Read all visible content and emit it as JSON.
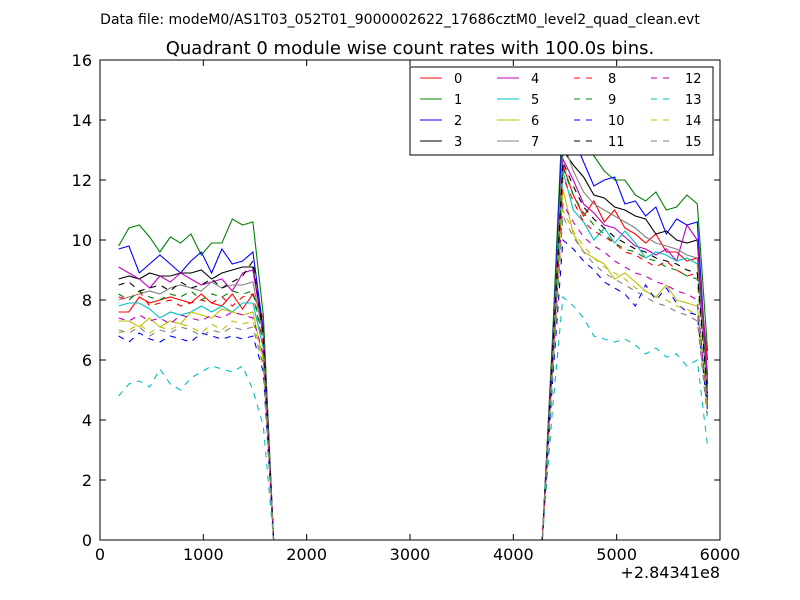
{
  "chart_data": {
    "type": "line",
    "suptitle": "Data file: modeM0/AS1T03_052T01_9000002622_17686cztM0_level2_quad_clean.evt",
    "title": "Quadrant 0 module wise count rates with 100.0s bins.",
    "xlabel": "",
    "ylabel": "",
    "offset_label": "+2.84341e8",
    "xlim": [
      0,
      6000
    ],
    "ylim": [
      0,
      16
    ],
    "xticks": [
      0,
      1000,
      2000,
      3000,
      4000,
      5000,
      6000
    ],
    "yticks": [
      0,
      2,
      4,
      6,
      8,
      10,
      12,
      14,
      16
    ],
    "grid": false,
    "legend_position": "top-right",
    "legend_columns": 4,
    "x": [
      180,
      280,
      380,
      480,
      580,
      680,
      780,
      880,
      980,
      1080,
      1180,
      1280,
      1380,
      1480,
      1580,
      1680,
      1780,
      1880,
      1980,
      2080,
      2180,
      2280,
      2380,
      2480,
      2580,
      2680,
      2780,
      2880,
      2980,
      3080,
      3180,
      3280,
      3380,
      3480,
      3580,
      3680,
      3780,
      3880,
      3980,
      4080,
      4180,
      4280,
      4380,
      4480,
      4580,
      4680,
      4780,
      4880,
      4980,
      5080,
      5180,
      5280,
      5380,
      5480,
      5580,
      5680,
      5780,
      5880
    ],
    "series": [
      {
        "name": "0",
        "color": "#ff0000",
        "dash": "solid",
        "values": [
          7.6,
          7.6,
          8.1,
          7.9,
          8.0,
          8.1,
          8.0,
          7.9,
          8.2,
          7.9,
          7.8,
          8.2,
          7.7,
          8.2,
          7.4,
          0,
          0,
          0,
          0,
          0,
          0,
          0,
          0,
          0,
          0,
          0,
          0,
          0,
          0,
          0,
          0,
          0,
          0,
          0,
          0,
          0,
          0,
          0,
          0,
          0,
          0,
          0,
          6.2,
          12.5,
          11.5,
          10.8,
          11.3,
          10.6,
          11.0,
          10.4,
          10.2,
          9.9,
          10.2,
          9.6,
          9.6,
          9.3,
          9.4,
          6.0
        ]
      },
      {
        "name": "1",
        "color": "#008000",
        "dash": "solid",
        "values": [
          9.8,
          10.4,
          10.5,
          10.1,
          9.6,
          10.1,
          9.9,
          10.2,
          9.5,
          9.9,
          9.9,
          10.7,
          10.5,
          10.6,
          7.5,
          0,
          0,
          0,
          0,
          0,
          0,
          0,
          0,
          0,
          0,
          0,
          0,
          0,
          0,
          0,
          0,
          0,
          0,
          0,
          0,
          0,
          0,
          0,
          0,
          0,
          0,
          0,
          6.8,
          14.5,
          14.0,
          13.6,
          12.8,
          12.3,
          12.0,
          12.0,
          11.5,
          11.3,
          11.6,
          11.0,
          11.1,
          11.5,
          11.2,
          6.3
        ]
      },
      {
        "name": "2",
        "color": "#0000ff",
        "dash": "solid",
        "values": [
          9.7,
          9.8,
          8.9,
          9.2,
          9.5,
          9.2,
          8.9,
          9.3,
          9.6,
          8.9,
          9.7,
          9.2,
          9.3,
          9.6,
          7.0,
          0,
          0,
          0,
          0,
          0,
          0,
          0,
          0,
          0,
          0,
          0,
          0,
          0,
          0,
          0,
          0,
          0,
          0,
          0,
          0,
          0,
          0,
          0,
          0,
          0,
          0,
          0,
          6.5,
          14.0,
          13.4,
          12.6,
          11.8,
          12.0,
          12.1,
          11.2,
          11.3,
          10.8,
          11.1,
          10.2,
          10.7,
          10.5,
          10.6,
          5.2
        ]
      },
      {
        "name": "3",
        "color": "#000000",
        "dash": "solid",
        "values": [
          8.7,
          8.8,
          8.7,
          8.9,
          8.8,
          8.8,
          8.9,
          8.9,
          9.0,
          8.7,
          8.9,
          9.0,
          9.1,
          9.1,
          6.9,
          0,
          0,
          0,
          0,
          0,
          0,
          0,
          0,
          0,
          0,
          0,
          0,
          0,
          0,
          0,
          0,
          0,
          0,
          0,
          0,
          0,
          0,
          0,
          0,
          0,
          0,
          0,
          6.4,
          13.0,
          12.5,
          12.1,
          11.5,
          11.4,
          11.1,
          11.0,
          10.8,
          10.7,
          10.2,
          10.3,
          10.0,
          9.9,
          10.0,
          4.8
        ]
      },
      {
        "name": "4",
        "color": "#bf00bf",
        "dash": "solid",
        "values": [
          9.1,
          8.9,
          8.7,
          8.4,
          8.8,
          8.6,
          8.9,
          8.7,
          8.5,
          8.6,
          8.7,
          8.3,
          8.9,
          9.0,
          6.9,
          0,
          0,
          0,
          0,
          0,
          0,
          0,
          0,
          0,
          0,
          0,
          0,
          0,
          0,
          0,
          0,
          0,
          0,
          0,
          0,
          0,
          0,
          0,
          0,
          0,
          0,
          0,
          6.2,
          12.7,
          12.0,
          11.2,
          10.9,
          10.5,
          10.4,
          10.1,
          9.8,
          9.7,
          9.5,
          9.7,
          9.3,
          10.5,
          10.0,
          5.5
        ]
      },
      {
        "name": "5",
        "color": "#00bfbf",
        "dash": "solid",
        "values": [
          7.8,
          7.9,
          7.9,
          7.7,
          7.4,
          7.6,
          7.5,
          7.6,
          7.8,
          7.6,
          7.8,
          7.6,
          7.9,
          7.9,
          6.4,
          0,
          0,
          0,
          0,
          0,
          0,
          0,
          0,
          0,
          0,
          0,
          0,
          0,
          0,
          0,
          0,
          0,
          0,
          0,
          0,
          0,
          0,
          0,
          0,
          0,
          0,
          0,
          6.0,
          12.3,
          11.0,
          10.6,
          10.0,
          10.4,
          9.9,
          10.3,
          9.9,
          9.4,
          9.6,
          9.5,
          9.3,
          9.4,
          9.2,
          4.8
        ]
      },
      {
        "name": "6",
        "color": "#bfbf00",
        "dash": "solid",
        "values": [
          7.3,
          7.3,
          7.1,
          7.4,
          7.1,
          7.3,
          7.2,
          7.6,
          7.5,
          7.4,
          7.7,
          7.6,
          7.5,
          7.6,
          6.0,
          0,
          0,
          0,
          0,
          0,
          0,
          0,
          0,
          0,
          0,
          0,
          0,
          0,
          0,
          0,
          0,
          0,
          0,
          0,
          0,
          0,
          0,
          0,
          0,
          0,
          0,
          0,
          5.8,
          11.7,
          10.2,
          9.6,
          9.4,
          9.2,
          8.7,
          8.9,
          8.6,
          8.3,
          8.1,
          8.5,
          8.0,
          7.9,
          7.8,
          4.5
        ]
      },
      {
        "name": "7",
        "color": "#808080",
        "dash": "solid",
        "values": [
          8.0,
          8.1,
          8.2,
          8.3,
          8.2,
          8.4,
          8.5,
          8.4,
          8.3,
          8.6,
          8.4,
          8.5,
          8.5,
          8.6,
          6.8,
          0,
          0,
          0,
          0,
          0,
          0,
          0,
          0,
          0,
          0,
          0,
          0,
          0,
          0,
          0,
          0,
          0,
          0,
          0,
          0,
          0,
          0,
          0,
          0,
          0,
          0,
          0,
          6.3,
          13.3,
          12.3,
          11.6,
          11.2,
          11.0,
          10.8,
          10.6,
          10.4,
          10.1,
          9.9,
          9.8,
          9.7,
          9.5,
          9.4,
          5.0
        ]
      },
      {
        "name": "8",
        "color": "#ff0000",
        "dash": "dashed",
        "values": [
          8.1,
          8.0,
          8.3,
          7.8,
          7.9,
          8.0,
          7.8,
          7.9,
          8.0,
          7.9,
          8.1,
          7.8,
          8.1,
          8.2,
          6.5,
          0,
          0,
          0,
          0,
          0,
          0,
          0,
          0,
          0,
          0,
          0,
          0,
          0,
          0,
          0,
          0,
          0,
          0,
          0,
          0,
          0,
          0,
          0,
          0,
          0,
          0,
          0,
          6.0,
          12.1,
          11.3,
          10.6,
          10.3,
          10.1,
          9.9,
          9.6,
          9.5,
          9.3,
          9.1,
          9.3,
          9.0,
          8.8,
          8.9,
          4.7
        ]
      },
      {
        "name": "9",
        "color": "#008000",
        "dash": "dashed",
        "values": [
          8.2,
          8.0,
          8.3,
          8.1,
          8.0,
          8.2,
          8.1,
          8.3,
          8.0,
          8.2,
          8.1,
          8.3,
          8.2,
          8.3,
          6.6,
          0,
          0,
          0,
          0,
          0,
          0,
          0,
          0,
          0,
          0,
          0,
          0,
          0,
          0,
          0,
          0,
          0,
          0,
          0,
          0,
          0,
          0,
          0,
          0,
          0,
          0,
          0,
          6.1,
          12.4,
          11.5,
          10.9,
          10.5,
          10.2,
          9.9,
          9.7,
          9.6,
          9.4,
          9.3,
          9.1,
          9.0,
          8.8,
          8.7,
          4.6
        ]
      },
      {
        "name": "10",
        "color": "#0000ff",
        "dash": "dashed",
        "values": [
          6.8,
          6.6,
          6.9,
          6.7,
          6.6,
          6.8,
          6.7,
          6.6,
          6.9,
          6.8,
          6.7,
          6.8,
          6.7,
          6.8,
          5.6,
          0,
          0,
          0,
          0,
          0,
          0,
          0,
          0,
          0,
          0,
          0,
          0,
          0,
          0,
          0,
          0,
          0,
          0,
          0,
          0,
          0,
          0,
          0,
          0,
          0,
          0,
          0,
          5.3,
          10.0,
          9.7,
          9.3,
          9.0,
          8.6,
          8.4,
          8.2,
          7.8,
          8.5,
          8.0,
          8.4,
          7.9,
          7.6,
          7.5,
          4.3
        ]
      },
      {
        "name": "11",
        "color": "#000000",
        "dash": "dashed",
        "values": [
          8.5,
          8.6,
          8.3,
          8.4,
          8.5,
          8.3,
          8.6,
          8.4,
          8.5,
          8.7,
          8.4,
          8.6,
          8.8,
          9.3,
          6.8,
          0,
          0,
          0,
          0,
          0,
          0,
          0,
          0,
          0,
          0,
          0,
          0,
          0,
          0,
          0,
          0,
          0,
          0,
          0,
          0,
          0,
          0,
          0,
          0,
          0,
          0,
          0,
          6.2,
          12.6,
          11.8,
          11.1,
          10.7,
          10.4,
          10.1,
          9.9,
          9.7,
          9.6,
          9.4,
          9.3,
          9.2,
          9.0,
          8.9,
          4.9
        ]
      },
      {
        "name": "12",
        "color": "#bf00bf",
        "dash": "dashed",
        "values": [
          7.4,
          7.3,
          7.5,
          7.3,
          7.4,
          7.2,
          7.5,
          7.4,
          7.3,
          7.5,
          7.4,
          7.6,
          7.5,
          7.4,
          6.2,
          0,
          0,
          0,
          0,
          0,
          0,
          0,
          0,
          0,
          0,
          0,
          0,
          0,
          0,
          0,
          0,
          0,
          0,
          0,
          0,
          0,
          0,
          0,
          0,
          0,
          0,
          0,
          5.8,
          11.2,
          10.6,
          10.1,
          9.8,
          9.6,
          9.3,
          9.1,
          8.9,
          8.8,
          8.6,
          8.5,
          8.3,
          8.2,
          8.0,
          4.4
        ]
      },
      {
        "name": "13",
        "color": "#00bfbf",
        "dash": "dashed",
        "values": [
          4.8,
          5.2,
          5.3,
          5.1,
          5.7,
          5.2,
          5.0,
          5.4,
          5.6,
          5.8,
          5.7,
          5.6,
          5.8,
          5.0,
          3.8,
          0,
          0,
          0,
          0,
          0,
          0,
          0,
          0,
          0,
          0,
          0,
          0,
          0,
          0,
          0,
          0,
          0,
          0,
          0,
          0,
          0,
          0,
          0,
          0,
          0,
          0,
          0,
          4.4,
          8.1,
          7.8,
          7.4,
          6.8,
          6.7,
          6.6,
          6.7,
          6.5,
          6.2,
          6.4,
          6.1,
          6.2,
          5.8,
          6.0,
          3.1
        ]
      },
      {
        "name": "14",
        "color": "#bfbf00",
        "dash": "dashed",
        "values": [
          6.9,
          7.0,
          7.2,
          6.9,
          7.1,
          7.0,
          7.2,
          7.1,
          6.9,
          7.2,
          7.0,
          7.3,
          7.2,
          7.3,
          5.9,
          0,
          0,
          0,
          0,
          0,
          0,
          0,
          0,
          0,
          0,
          0,
          0,
          0,
          0,
          0,
          0,
          0,
          0,
          0,
          0,
          0,
          0,
          0,
          0,
          0,
          0,
          0,
          5.6,
          11.0,
          10.3,
          9.8,
          9.4,
          9.1,
          8.9,
          8.7,
          8.4,
          8.3,
          8.1,
          8.0,
          7.8,
          7.7,
          7.5,
          4.2
        ]
      },
      {
        "name": "15",
        "color": "#808080",
        "dash": "dashed",
        "values": [
          7.0,
          6.9,
          7.1,
          6.8,
          7.0,
          6.9,
          7.1,
          7.0,
          6.8,
          7.0,
          6.9,
          7.1,
          7.0,
          7.1,
          5.8,
          0,
          0,
          0,
          0,
          0,
          0,
          0,
          0,
          0,
          0,
          0,
          0,
          0,
          0,
          0,
          0,
          0,
          0,
          0,
          0,
          0,
          0,
          0,
          0,
          0,
          0,
          0,
          5.5,
          10.8,
          10.1,
          9.6,
          9.2,
          8.9,
          8.7,
          8.5,
          8.3,
          8.1,
          7.9,
          7.8,
          7.6,
          7.5,
          7.3,
          4.0
        ]
      }
    ]
  }
}
